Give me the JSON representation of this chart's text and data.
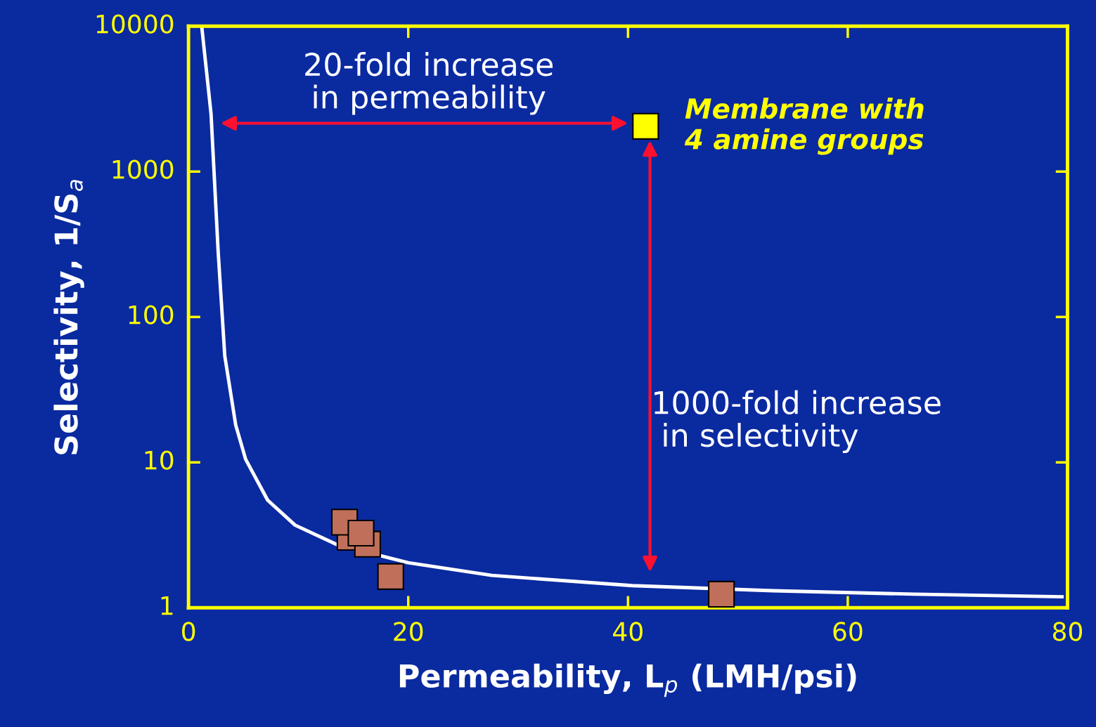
{
  "chart_data": {
    "type": "scatter",
    "xlabel": "Permeability, L$_{p}$ (LMH/psi)",
    "ylabel": "Selectivity, 1/S$_{a}$",
    "log": "y",
    "xlim": [
      0,
      80
    ],
    "ylim": [
      1,
      10000
    ],
    "xticks": [
      0,
      20,
      40,
      60,
      80
    ],
    "yticks": [
      1,
      10,
      100,
      1000,
      10000
    ],
    "grid": false,
    "legend": false,
    "marker": "square",
    "series": [
      {
        "type": "line",
        "marker": "none",
        "color": "#ffffff",
        "x": [
          1.2,
          2.05,
          2.7,
          3.3,
          4.3,
          5.2,
          7.2,
          9.7,
          13.6,
          20,
          27.6,
          40.4,
          53.2,
          66,
          79.5
        ],
        "values": [
          10000,
          2500,
          280,
          54,
          18,
          10.5,
          5.5,
          3.7,
          2.7,
          2.04,
          1.67,
          1.42,
          1.31,
          1.24,
          1.19
        ]
      },
      {
        "color": "#c0705a",
        "x": [
          14.7,
          16.3,
          14.2,
          15.7,
          18.4,
          48.5
        ],
        "values": [
          3.05,
          2.74,
          3.88,
          3.26,
          1.64,
          1.24
        ]
      },
      {
        "color": "#ffff00",
        "x": [
          41.6
        ],
        "values": [
          2047
        ]
      }
    ],
    "annotations": [
      "20-fold increase\nin permeability",
      "1000-fold increase\n in selectivity",
      {
        "text": "Membrane with\n4 amine groups",
        "x": 41.6,
        "y": 2047
      }
    ]
  }
}
